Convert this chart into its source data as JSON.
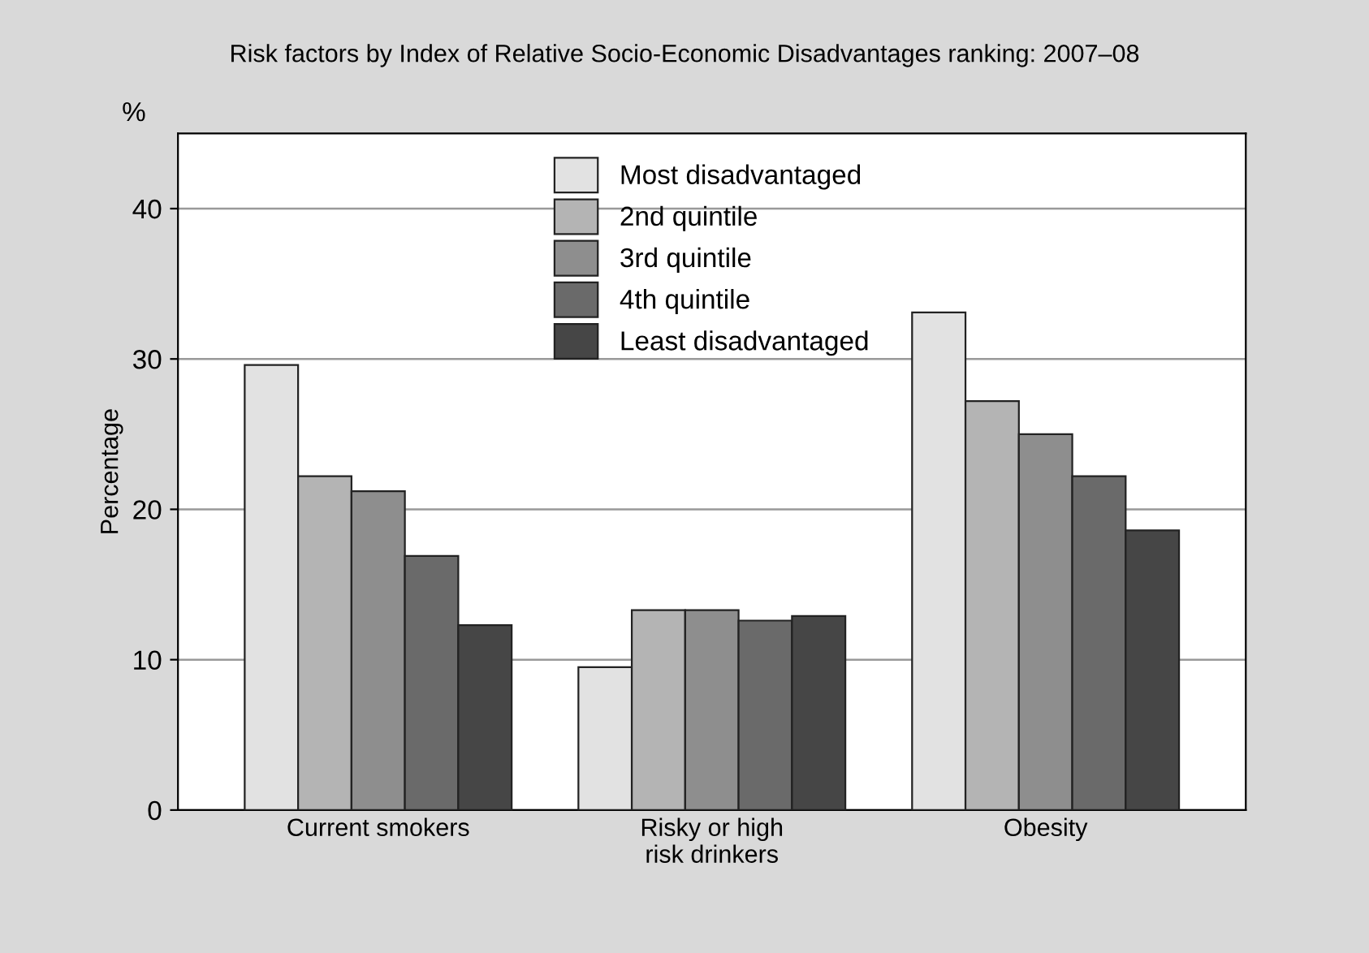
{
  "chart_data": {
    "type": "bar",
    "title": "Risk factors by Index of Relative Socio-Economic Disadvantages ranking: 2007–08",
    "ylabel": "Percentage",
    "annotations": [
      "%"
    ],
    "categories": [
      "Current smokers",
      "Risky or high\nrisk drinkers",
      "Obesity"
    ],
    "series": [
      {
        "name": "Most disadvantaged",
        "color": "#e2e2e2",
        "values": [
          29.6,
          9.5,
          33.1
        ]
      },
      {
        "name": "2nd quintile",
        "color": "#b4b4b4",
        "values": [
          22.2,
          13.3,
          27.2
        ]
      },
      {
        "name": "3rd quintile",
        "color": "#8e8e8e",
        "values": [
          21.2,
          13.3,
          25.0
        ]
      },
      {
        "name": "4th quintile",
        "color": "#6a6a6a",
        "values": [
          16.9,
          12.6,
          22.2
        ]
      },
      {
        "name": "Least disadvantaged",
        "color": "#464646",
        "values": [
          12.3,
          12.9,
          18.6
        ]
      }
    ],
    "ylim": [
      0,
      45
    ],
    "yticks": [
      0,
      10,
      20,
      30,
      40
    ],
    "grid": "y",
    "legend": "top"
  }
}
